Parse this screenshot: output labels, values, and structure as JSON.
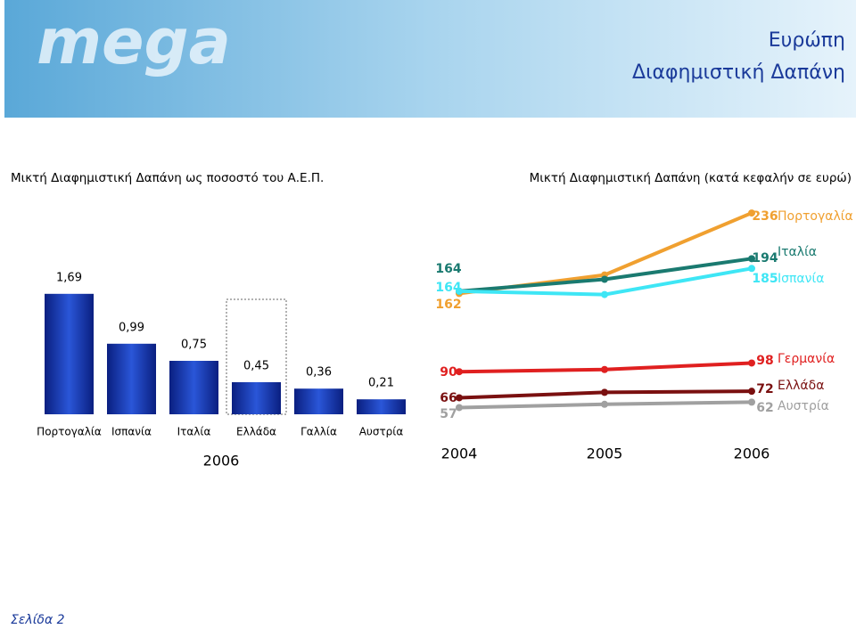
{
  "header": {
    "logo": "mega",
    "title": "Ευρώπη",
    "subtitle": "Διαφημιστική Δαπάνη"
  },
  "chart_data": [
    {
      "type": "bar",
      "title": "Μικτή Διαφημιστική Δαπάνη ως ποσοστό του Α.Ε.Π.",
      "categories": [
        "Πορτογαλία",
        "Ισπανία",
        "Ιταλία",
        "Ελλάδα",
        "Γαλλία",
        "Αυστρία"
      ],
      "values": [
        1.69,
        0.99,
        0.75,
        0.45,
        0.36,
        0.21
      ],
      "value_labels": [
        "1,69",
        "0,99",
        "0,75",
        "0,45",
        "0,36",
        "0,21"
      ],
      "xlabel": "2006",
      "color": "#1c3fb0",
      "highlight": "Ελλάδα"
    },
    {
      "type": "line",
      "title": "Μικτή Διαφημιστική Δαπάνη (κατά κεφαλήν σε ευρώ)",
      "categories": [
        "2004",
        "2005",
        "2006"
      ],
      "series": [
        {
          "name": "Πορτογαλία",
          "color": "#f0a030",
          "values": [
            162,
            179,
            236
          ],
          "value_labels": [
            "162",
            null,
            "236"
          ]
        },
        {
          "name": "Ιταλία",
          "color": "#1a7a70",
          "values": [
            164,
            175,
            194
          ],
          "value_labels": [
            "164",
            null,
            "194"
          ]
        },
        {
          "name": "Ισπανία",
          "color": "#3ee6f5",
          "values": [
            164,
            161,
            185
          ],
          "value_labels": [
            "164",
            null,
            "185"
          ]
        },
        {
          "name": "Γερμανία",
          "color": "#e02020",
          "values": [
            90,
            92,
            98
          ],
          "value_labels": [
            "90",
            null,
            "98"
          ]
        },
        {
          "name": "Ελλάδα",
          "color": "#7a1010",
          "values": [
            66,
            71,
            72
          ],
          "value_labels": [
            "66",
            null,
            "72"
          ]
        },
        {
          "name": "Αυστρία",
          "color": "#a0a0a0",
          "values": [
            57,
            60,
            62
          ],
          "value_labels": [
            "57",
            null,
            "62"
          ]
        }
      ]
    }
  ],
  "footer": "Σελίδα 2"
}
